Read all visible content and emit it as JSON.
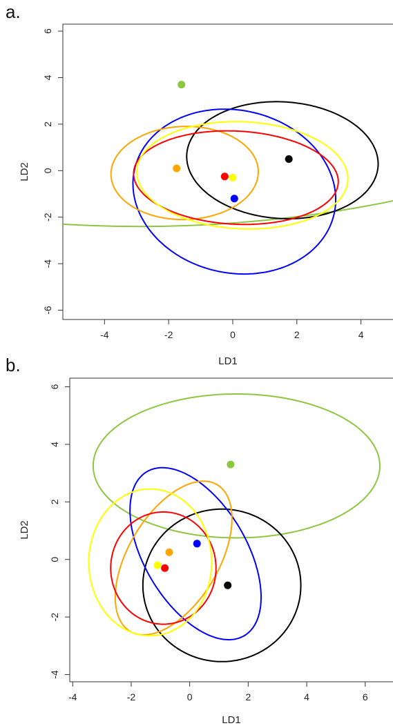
{
  "chart_data": [
    {
      "type": "scatter",
      "panel_label": "a.",
      "xlabel": "LD1",
      "ylabel": "LD2",
      "xlim": [
        -5.3,
        5.0
      ],
      "ylim": [
        -6.4,
        6.3
      ],
      "xticks": [
        -4,
        -2,
        0,
        2,
        4
      ],
      "yticks": [
        -6,
        -4,
        -2,
        0,
        2,
        4,
        6
      ],
      "grid": false,
      "series": [
        {
          "color": "#8dc63f",
          "point": [
            -1.6,
            3.7
          ],
          "ellipse": {
            "cx": -2.9,
            "cy": 26.7,
            "rx": 29.0,
            "ry": 29.1,
            "angle": 0
          }
        },
        {
          "color": "#000000",
          "point": [
            1.75,
            0.5
          ],
          "ellipse": {
            "cx": 1.55,
            "cy": 0.45,
            "rx": 3.0,
            "ry": 2.5,
            "angle": -10
          }
        },
        {
          "color": "#0000ff",
          "point": [
            0.05,
            -1.2
          ],
          "ellipse": {
            "cx": 0.05,
            "cy": -0.9,
            "rx": 3.6,
            "ry": 3.1,
            "angle": -70
          }
        },
        {
          "color": "#ffa500",
          "point": [
            -1.75,
            0.1
          ],
          "ellipse": {
            "cx": -1.5,
            "cy": -0.1,
            "rx": 2.3,
            "ry": 2.0,
            "angle": 5
          }
        },
        {
          "color": "#ff0000",
          "point": [
            -0.25,
            -0.25
          ],
          "ellipse": {
            "cx": 0.1,
            "cy": -0.3,
            "rx": 3.2,
            "ry": 2.0,
            "angle": -5
          }
        },
        {
          "color": "#ffff00",
          "point": [
            0.0,
            -0.3
          ],
          "ellipse": {
            "cx": 0.3,
            "cy": -0.2,
            "rx": 3.3,
            "ry": 2.3,
            "angle": -5
          }
        }
      ]
    },
    {
      "type": "scatter",
      "panel_label": "b.",
      "xlabel": "LD1",
      "ylabel": "LD2",
      "xlim": [
        -4.1,
        6.95
      ],
      "ylim": [
        -4.25,
        6.3
      ],
      "xticks": [
        -4,
        -2,
        0,
        2,
        4,
        6
      ],
      "yticks": [
        -4,
        -2,
        0,
        2,
        4,
        6
      ],
      "grid": false,
      "series": [
        {
          "color": "#8dc63f",
          "point": [
            1.4,
            3.3
          ],
          "ellipse": {
            "cx": 1.6,
            "cy": 3.25,
            "rx": 4.9,
            "ry": 2.5,
            "angle": 0
          }
        },
        {
          "color": "#000000",
          "point": [
            1.3,
            -0.9
          ],
          "ellipse": {
            "cx": 1.1,
            "cy": -0.9,
            "rx": 2.7,
            "ry": 2.65,
            "angle": 0
          }
        },
        {
          "color": "#0000ff",
          "point": [
            0.25,
            0.55
          ],
          "ellipse": {
            "cx": 0.2,
            "cy": 0.2,
            "rx": 3.3,
            "ry": 1.75,
            "angle": -60
          }
        },
        {
          "color": "#ffa500",
          "point": [
            -0.7,
            0.25
          ],
          "ellipse": {
            "cx": -0.55,
            "cy": 0.05,
            "rx": 2.95,
            "ry": 1.55,
            "angle": 60
          }
        },
        {
          "color": "#ff0000",
          "point": [
            -0.85,
            -0.3
          ],
          "ellipse": {
            "cx": -0.9,
            "cy": -0.3,
            "rx": 1.8,
            "ry": 1.95,
            "angle": 0
          }
        },
        {
          "color": "#ffff00",
          "point": [
            -1.1,
            -0.2
          ],
          "ellipse": {
            "cx": -1.35,
            "cy": -0.1,
            "rx": 2.1,
            "ry": 2.55,
            "angle": 0
          }
        }
      ]
    }
  ]
}
